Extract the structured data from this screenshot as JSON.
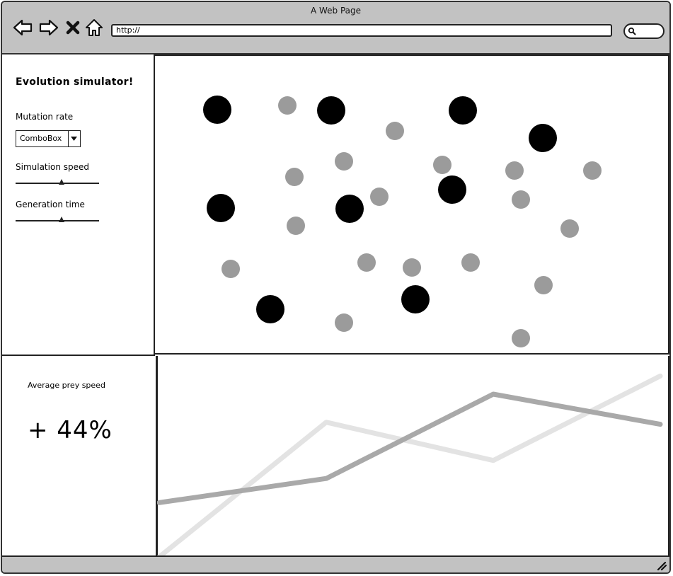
{
  "window": {
    "title": "A Web Page",
    "url": "http://"
  },
  "icons": {
    "back": "back-arrow-icon",
    "forward": "forward-arrow-icon",
    "stop": "close-icon",
    "home": "home-icon",
    "search": "search-icon",
    "resize": "resize-grip-icon"
  },
  "sidebar": {
    "title": "Evolution simulator!",
    "mutation_rate_label": "Mutation rate",
    "mutation_rate_value": "ComboBox",
    "simulation_speed_label": "Simulation speed",
    "simulation_speed_value": 0.55,
    "generation_time_label": "Generation time",
    "generation_time_value": 0.55
  },
  "simulation": {
    "predator_color": "#000000",
    "prey_color": "#9b9b9b"
  },
  "stats": {
    "label": "Average prey speed",
    "value": "+ 44%"
  },
  "chart_data": {
    "type": "line",
    "x": [
      0,
      1,
      2,
      3
    ],
    "xlim": [
      0,
      3
    ],
    "ylim": [
      0,
      1
    ],
    "grid": false,
    "series": [
      {
        "color": "#e3e3e3",
        "values": [
          0.0,
          0.67,
          0.48,
          0.9
        ]
      },
      {
        "color": "#a9a9a9",
        "values": [
          0.27,
          0.39,
          0.81,
          0.66
        ]
      }
    ]
  }
}
